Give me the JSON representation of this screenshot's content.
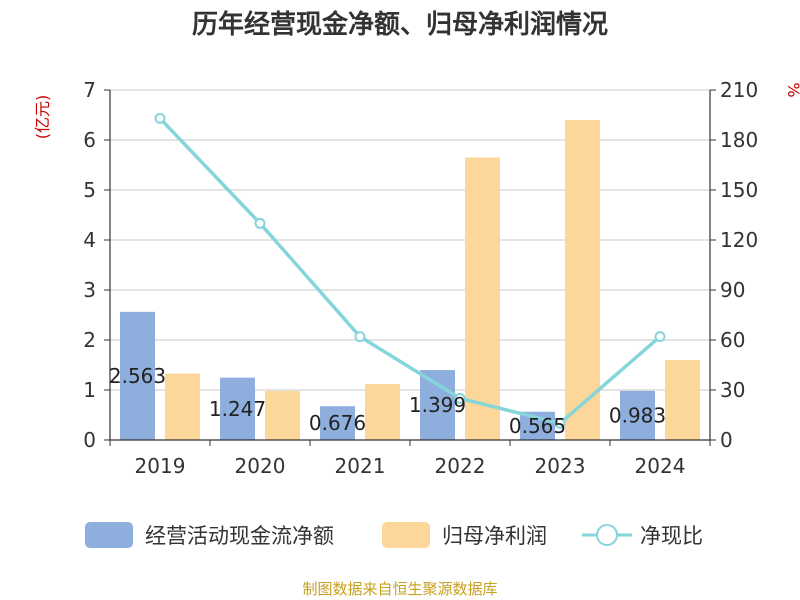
{
  "chart_data": {
    "type": "bar",
    "title": "历年经营现金净额、归母净利润情况",
    "categories": [
      "2019",
      "2020",
      "2021",
      "2022",
      "2023",
      "2024"
    ],
    "series": [
      {
        "name": "经营活动现金流净额",
        "type": "bar",
        "axis": "left",
        "color": "#8eaedd",
        "values": [
          2.563,
          1.247,
          0.676,
          1.399,
          0.565,
          0.983
        ],
        "labels": [
          "2.563",
          "1.247",
          "0.676",
          "1.399",
          "0.565",
          "0.983"
        ]
      },
      {
        "name": "归母净利润",
        "type": "bar",
        "axis": "left",
        "color": "#fdd79a",
        "values": [
          1.33,
          0.98,
          1.12,
          5.65,
          6.4,
          1.6
        ]
      },
      {
        "name": "净现比",
        "type": "line",
        "axis": "right",
        "color": "#85d5db",
        "values": [
          193,
          130,
          62,
          25,
          10,
          62
        ]
      }
    ],
    "y_left": {
      "unit": "(亿元)",
      "ylim": [
        0,
        7
      ],
      "ticks": [
        "0",
        "1",
        "2",
        "3",
        "4",
        "5",
        "6",
        "7"
      ]
    },
    "y_right": {
      "unit": "%",
      "ylim": [
        0,
        210
      ],
      "ticks": [
        "0",
        "30",
        "60",
        "90",
        "120",
        "150",
        "180",
        "210"
      ]
    },
    "grid": true,
    "legend_position": "bottom"
  },
  "source_note": "制图数据来自恒生聚源数据库"
}
